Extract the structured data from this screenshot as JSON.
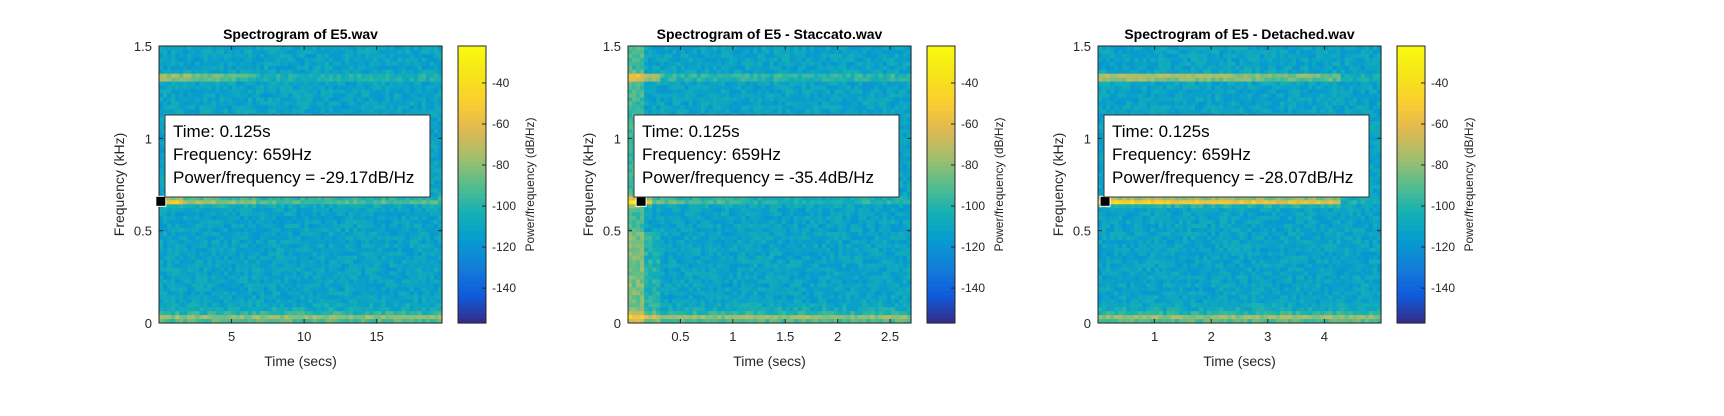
{
  "chart_data": [
    {
      "type": "heatmap",
      "title": "Spectrogram of E5.wav",
      "xlabel": "Time (secs)",
      "ylabel": "Frequency (kHz)",
      "xlim": [
        0,
        19.5
      ],
      "ylim": [
        0,
        1.5
      ],
      "xticks": [
        5,
        10,
        15
      ],
      "xtick_labels": [
        "5",
        "10",
        "15"
      ],
      "yticks": [
        0,
        0.5,
        1,
        1.5
      ],
      "ytick_labels": [
        "0",
        "0.5",
        "1",
        "1.5"
      ],
      "colorbar": {
        "label": "Power/frequency (dB/Hz)",
        "lim": [
          -157,
          -22
        ],
        "ticks": [
          -40,
          -60,
          -80,
          -100,
          -120,
          -140
        ],
        "tick_labels": [
          "-40",
          "-60",
          "-80",
          "-100",
          "-120",
          "-140"
        ]
      },
      "harmonics_khz": [
        0.03,
        0.659,
        1.33
      ],
      "datatip": {
        "x": 0.125,
        "y": 0.659,
        "lines": [
          "Time: 0.125s",
          "Frequency: 659Hz",
          "Power/frequency = -29.17dB/Hz"
        ]
      }
    },
    {
      "type": "heatmap",
      "title": "Spectrogram of E5 - Staccato.wav",
      "xlabel": "Time (secs)",
      "ylabel": "Frequency (kHz)",
      "xlim": [
        0,
        2.7
      ],
      "ylim": [
        0,
        1.5
      ],
      "xticks": [
        0.5,
        1,
        1.5,
        2,
        2.5
      ],
      "xtick_labels": [
        "0.5",
        "1",
        "1.5",
        "2",
        "2.5"
      ],
      "yticks": [
        0,
        0.5,
        1,
        1.5
      ],
      "ytick_labels": [
        "0",
        "0.5",
        "1",
        "1.5"
      ],
      "colorbar": {
        "label": "Power/frequency (dB/Hz)",
        "lim": [
          -157,
          -22
        ],
        "ticks": [
          -40,
          -60,
          -80,
          -100,
          -120,
          -140
        ],
        "tick_labels": [
          "-40",
          "-60",
          "-80",
          "-100",
          "-120",
          "-140"
        ]
      },
      "harmonics_khz": [
        0.03,
        0.659,
        1.33
      ],
      "datatip": {
        "x": 0.125,
        "y": 0.659,
        "lines": [
          "Time: 0.125s",
          "Frequency: 659Hz",
          "Power/frequency = -35.4dB/Hz"
        ]
      }
    },
    {
      "type": "heatmap",
      "title": "Spectrogram of E5 - Detached.wav",
      "xlabel": "Time (secs)",
      "ylabel": "Frequency (kHz)",
      "xlim": [
        0,
        5.0
      ],
      "ylim": [
        0,
        1.5
      ],
      "xticks": [
        1,
        2,
        3,
        4
      ],
      "xtick_labels": [
        "1",
        "2",
        "3",
        "4"
      ],
      "yticks": [
        0,
        0.5,
        1,
        1.5
      ],
      "ytick_labels": [
        "0",
        "0.5",
        "1",
        "1.5"
      ],
      "colorbar": {
        "label": "Power/frequency (dB/Hz)",
        "lim": [
          -157,
          -22
        ],
        "ticks": [
          -40,
          -60,
          -80,
          -100,
          -120,
          -140
        ],
        "tick_labels": [
          "-40",
          "-60",
          "-80",
          "-100",
          "-120",
          "-140"
        ]
      },
      "harmonics_khz": [
        0.03,
        0.659,
        1.33
      ],
      "datatip": {
        "x": 0.125,
        "y": 0.659,
        "lines": [
          "Time: 0.125s",
          "Frequency: 659Hz",
          "Power/frequency = -28.07dB/Hz"
        ]
      }
    }
  ]
}
